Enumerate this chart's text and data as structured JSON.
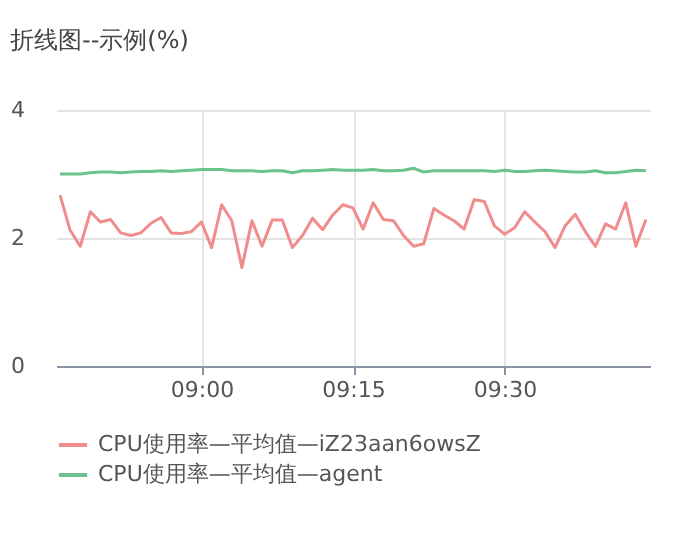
{
  "chart_data": {
    "type": "line",
    "title": "折线图--示例(%)",
    "x": [
      8.7667,
      8.7833,
      8.8,
      8.8167,
      8.8333,
      8.85,
      8.8667,
      8.8833,
      8.9,
      8.9167,
      8.9333,
      8.95,
      8.9667,
      8.9833,
      9.0,
      9.0167,
      9.0333,
      9.05,
      9.0667,
      9.0833,
      9.1,
      9.1167,
      9.1333,
      9.15,
      9.1667,
      9.1833,
      9.2,
      9.2167,
      9.2333,
      9.25,
      9.2667,
      9.2833,
      9.3,
      9.3167,
      9.3333,
      9.35,
      9.3667,
      9.3833,
      9.4,
      9.4167,
      9.4333,
      9.45,
      9.4667,
      9.4833,
      9.5,
      9.5167,
      9.5333,
      9.55,
      9.5667,
      9.5833,
      9.6,
      9.6167,
      9.6333,
      9.65,
      9.6667,
      9.6833,
      9.7,
      9.7167,
      9.7333
    ],
    "series": [
      {
        "name": "CPU使用率—平均值—iZ23aan6owsZ",
        "color": "#f08c8c",
        "values": [
          2.67,
          2.12,
          1.87,
          2.41,
          2.25,
          2.29,
          2.08,
          2.04,
          2.08,
          2.23,
          2.32,
          2.08,
          2.07,
          2.1,
          2.25,
          1.85,
          2.52,
          2.27,
          1.54,
          2.27,
          1.87,
          2.28,
          2.28,
          1.85,
          2.04,
          2.31,
          2.13,
          2.36,
          2.52,
          2.47,
          2.14,
          2.55,
          2.29,
          2.27,
          2.04,
          1.87,
          1.91,
          2.46,
          2.36,
          2.27,
          2.14,
          2.6,
          2.57,
          2.19,
          2.06,
          2.16,
          2.41,
          2.25,
          2.1,
          1.85,
          2.19,
          2.37,
          2.1,
          1.87,
          2.22,
          2.14,
          2.55,
          1.87,
          2.29
        ]
      },
      {
        "name": "CPU使用率—平均值—agent",
        "color": "#6cc28c",
        "values": [
          3.0,
          3.0,
          3.0,
          3.02,
          3.03,
          3.03,
          3.02,
          3.03,
          3.04,
          3.04,
          3.05,
          3.04,
          3.05,
          3.06,
          3.07,
          3.07,
          3.07,
          3.05,
          3.05,
          3.05,
          3.04,
          3.05,
          3.05,
          3.02,
          3.05,
          3.05,
          3.06,
          3.07,
          3.06,
          3.06,
          3.06,
          3.07,
          3.05,
          3.05,
          3.06,
          3.09,
          3.03,
          3.05,
          3.05,
          3.05,
          3.05,
          3.05,
          3.05,
          3.04,
          3.06,
          3.04,
          3.04,
          3.05,
          3.06,
          3.05,
          3.04,
          3.03,
          3.03,
          3.05,
          3.02,
          3.02,
          3.04,
          3.06,
          3.05
        ]
      }
    ],
    "xlim": [
      8.76,
      9.74
    ],
    "xticks": [
      {
        "value": 9.0,
        "label": "09:00"
      },
      {
        "value": 9.25,
        "label": "09:15"
      },
      {
        "value": 9.5,
        "label": "09:30"
      }
    ],
    "ylim": [
      0,
      4
    ],
    "yticks": [
      0,
      2,
      4
    ],
    "grid": true,
    "legend": "bottom",
    "marker": "none",
    "line_style": "solid"
  }
}
